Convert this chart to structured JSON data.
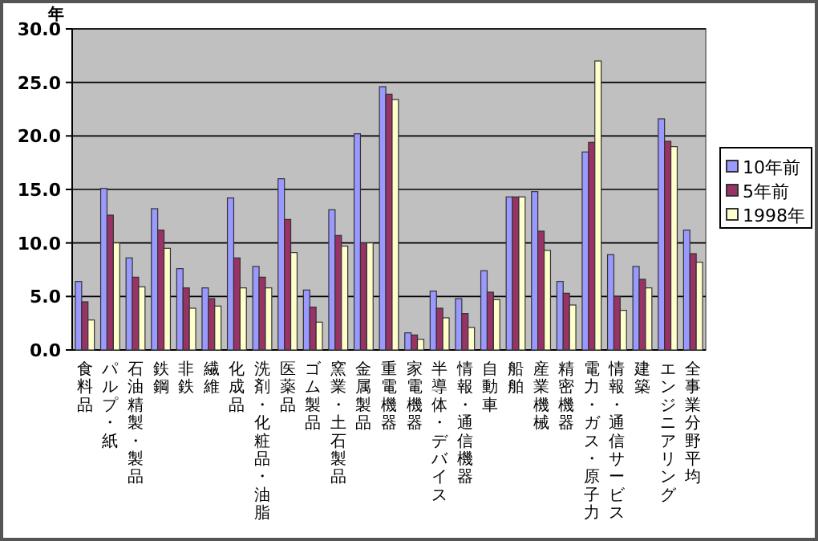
{
  "chart_data": {
    "type": "bar",
    "ylabel": "年",
    "categories": [
      "食料品",
      "パルプ・紙",
      "石油精製・製品",
      "鉄鋼",
      "非鉄",
      "繊維",
      "化成品",
      "洗剤・化粧品・油脂",
      "医薬品",
      "ゴム製品",
      "窯業・土石製品",
      "金属製品",
      "重電機器",
      "家電機器",
      "半導体・デバイス",
      "情報・通信機器",
      "自動車",
      "船舶",
      "産業機械",
      "精密機器",
      "電力・ガス・原子力",
      "情報・通信サービス",
      "建築",
      "エンジニアリング",
      "全事業分野平均"
    ],
    "series": [
      {
        "name": "10年前",
        "color": "#9999ff",
        "values": [
          6.4,
          15.1,
          8.6,
          13.2,
          7.6,
          5.8,
          14.2,
          7.8,
          16.0,
          5.6,
          13.1,
          20.2,
          24.6,
          1.6,
          5.5,
          4.8,
          7.4,
          14.3,
          14.8,
          6.4,
          18.5,
          8.9,
          7.8,
          21.6,
          11.2
        ]
      },
      {
        "name": "5年前",
        "color": "#993366",
        "values": [
          4.5,
          12.6,
          6.8,
          11.2,
          5.8,
          4.8,
          8.6,
          6.8,
          12.2,
          4.0,
          10.7,
          10.0,
          23.9,
          1.4,
          3.9,
          3.4,
          5.4,
          14.3,
          11.1,
          5.3,
          19.4,
          5.0,
          6.6,
          19.5,
          9.0
        ]
      },
      {
        "name": "1998年",
        "color": "#ffffcc",
        "values": [
          2.8,
          10.0,
          5.9,
          9.5,
          3.9,
          4.1,
          5.8,
          5.8,
          9.1,
          2.6,
          9.7,
          10.0,
          23.4,
          1.0,
          3.0,
          2.1,
          4.7,
          14.3,
          9.3,
          4.2,
          27.0,
          3.7,
          5.8,
          19.0,
          8.2
        ]
      }
    ],
    "ylim": [
      0,
      30
    ],
    "yticks": [
      {
        "value": 0,
        "label": "0.0"
      },
      {
        "value": 5,
        "label": "5.0"
      },
      {
        "value": 10,
        "label": "10.0"
      },
      {
        "value": 15,
        "label": "15.0"
      },
      {
        "value": 20,
        "label": "20.0"
      },
      {
        "value": 25,
        "label": "25.0"
      },
      {
        "value": 30,
        "label": "30.0"
      }
    ],
    "grid": "y",
    "legend": "right"
  }
}
